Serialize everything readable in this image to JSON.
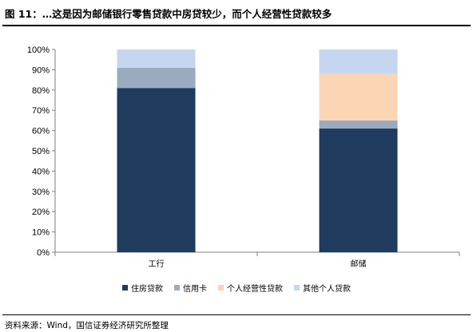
{
  "figure": {
    "title": "图 11：…这是因为邮储银行零售贷款中房贷较少，而个人经营性贷款较多",
    "source": "资料来源：Wind，国信证券经济研究所整理"
  },
  "chart_data": {
    "type": "bar",
    "stacked": true,
    "categories": [
      "工行",
      "邮储"
    ],
    "series": [
      {
        "name": "住房贷款",
        "color": "#1f3b5e",
        "values": [
          81,
          61
        ]
      },
      {
        "name": "信用卡",
        "color": "#9aabbf",
        "values": [
          10,
          4
        ]
      },
      {
        "name": "个人经营性贷款",
        "color": "#fcd5b5",
        "values": [
          0,
          23
        ]
      },
      {
        "name": "其他个人贷款",
        "color": "#c6d6f0",
        "values": [
          9,
          12
        ]
      }
    ],
    "ylim": [
      0,
      100
    ],
    "yticks": [
      "0%",
      "10%",
      "20%",
      "30%",
      "40%",
      "50%",
      "60%",
      "70%",
      "80%",
      "90%",
      "100%"
    ],
    "xlabel": "",
    "ylabel": "",
    "grid": false,
    "legend_position": "bottom"
  }
}
